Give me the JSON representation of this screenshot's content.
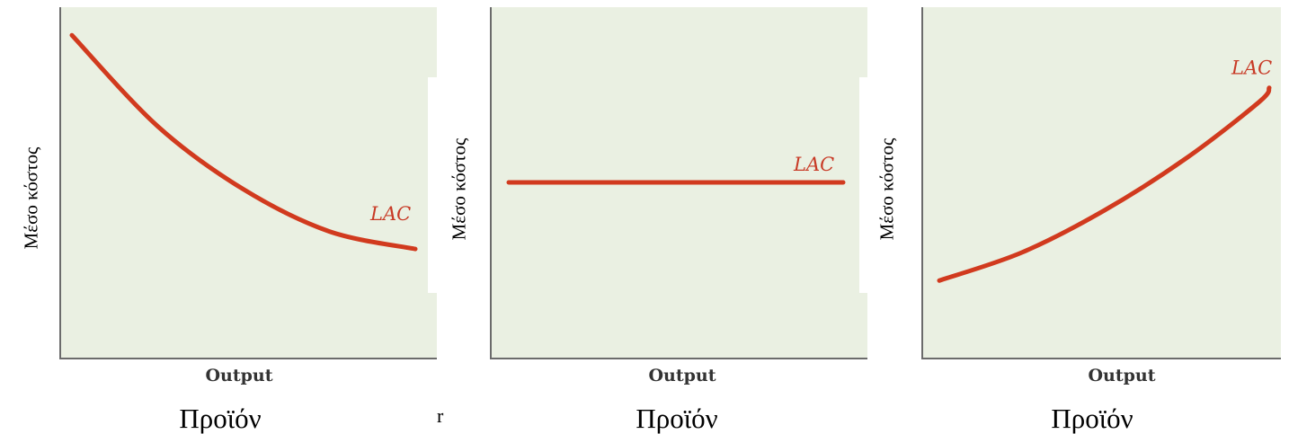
{
  "chart_data": [
    {
      "type": "line",
      "trend": "decreasing",
      "title": "",
      "xlabel": "Output",
      "x_sublabel": "Προϊόν",
      "ylabel": "Μέσο κόστος",
      "series": [
        {
          "name": "LAC",
          "x": [
            0.0,
            0.25,
            0.5,
            0.75,
            1.0
          ],
          "y": [
            0.92,
            0.66,
            0.48,
            0.36,
            0.31
          ]
        }
      ],
      "xlim": [
        0,
        1.05
      ],
      "ylim": [
        0,
        1
      ],
      "grid": false,
      "color": "#d13a1e"
    },
    {
      "type": "line",
      "trend": "constant",
      "title": "",
      "xlabel": "Output",
      "x_sublabel": "Προϊόν",
      "ylabel": "Μέσο κόστος",
      "series": [
        {
          "name": "LAC",
          "x": [
            0.0,
            0.5,
            1.0
          ],
          "y": [
            0.5,
            0.5,
            0.5
          ]
        }
      ],
      "xlim": [
        0,
        1.05
      ],
      "ylim": [
        0,
        1
      ],
      "grid": false,
      "color": "#d13a1e"
    },
    {
      "type": "line",
      "trend": "increasing",
      "title": "",
      "xlabel": "Output",
      "x_sublabel": "Προϊόν",
      "ylabel": "Μέσο κόστος",
      "series": [
        {
          "name": "LAC",
          "x": [
            0.0,
            0.25,
            0.5,
            0.75,
            0.97,
            1.0
          ],
          "y": [
            0.22,
            0.3,
            0.42,
            0.57,
            0.73,
            0.77
          ]
        }
      ],
      "xlim": [
        0,
        1.0
      ],
      "ylim": [
        0,
        1
      ],
      "grid": false,
      "color": "#d13a1e"
    }
  ],
  "stray_marks": [
    "r"
  ]
}
